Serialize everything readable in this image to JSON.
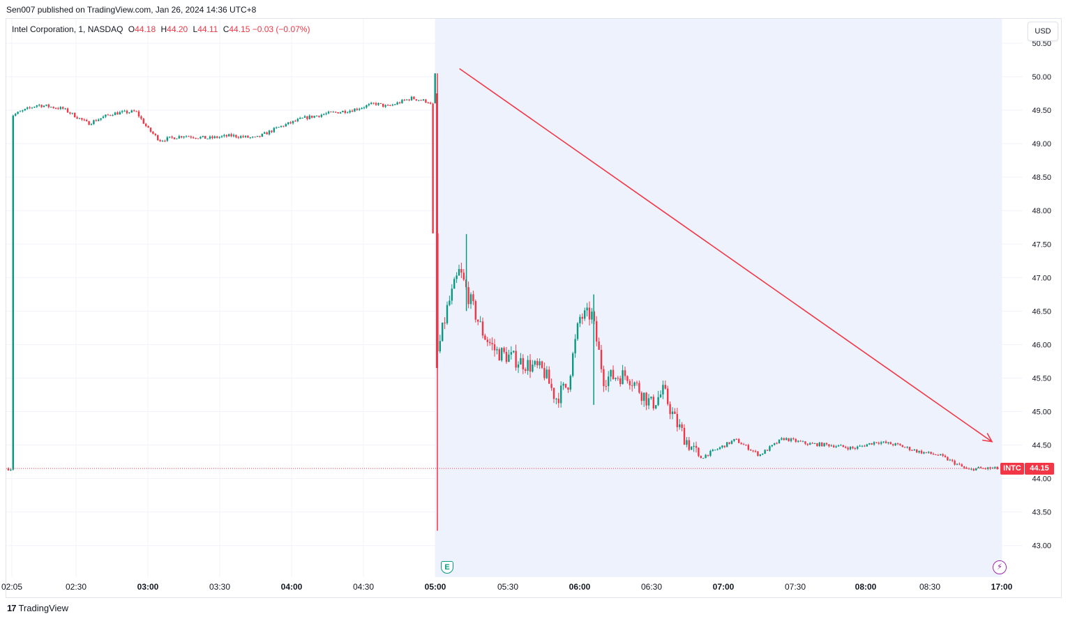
{
  "header": {
    "published": "Sen007 published on TradingView.com, Jan 26, 2024 14:36 UTC+8"
  },
  "legend": {
    "symbol": "Intel Corporation, 1, NASDAQ",
    "o_label": "O",
    "o_value": "44.18",
    "h_label": "H",
    "h_value": "44.20",
    "l_label": "L",
    "l_value": "44.11",
    "c_label": "C",
    "c_value": "44.15",
    "change": "−0.03 (−0.07%)"
  },
  "currency_button": "USD",
  "last_price": {
    "ticker": "INTC",
    "value": "44.15"
  },
  "badges": {
    "earnings": "E",
    "event": "⚡"
  },
  "footer": {
    "logo_text": "TradingView",
    "logo_mark": "17"
  },
  "colors": {
    "up": "#089981",
    "down": "#f23645",
    "session_shade": "#eef2fd",
    "grid": "#f0f3fa",
    "axis_text": "#131722",
    "arrow": "#f23645"
  },
  "chart_data": {
    "type": "candlestick",
    "symbol": "INTC",
    "interval": "1",
    "x_tick_labels": [
      "02:05",
      "02:30",
      "03:00",
      "03:30",
      "04:00",
      "04:30",
      "05:00",
      "05:30",
      "06:00",
      "06:30",
      "07:00",
      "07:30",
      "08:00",
      "08:30",
      "17:00"
    ],
    "y_tick_labels": [
      "50.50",
      "50.00",
      "49.50",
      "49.00",
      "48.50",
      "48.00",
      "47.50",
      "47.00",
      "46.50",
      "46.00",
      "45.50",
      "45.00",
      "44.50",
      "44.00",
      "43.50",
      "43.00"
    ],
    "ylim": [
      42.5,
      50.6
    ],
    "extended_session_start": "05:00",
    "grid": true,
    "last_close": 44.15,
    "trend_arrow": {
      "from": {
        "time": "05:10",
        "price": 50.12
      },
      "to": {
        "time": "09:10",
        "price": 44.55
      }
    },
    "price_path": [
      [
        "02:05",
        49.42
      ],
      [
        "02:15",
        49.58
      ],
      [
        "02:25",
        49.52
      ],
      [
        "02:35",
        49.3
      ],
      [
        "02:45",
        49.45
      ],
      [
        "02:55",
        49.48
      ],
      [
        "03:00",
        49.22
      ],
      [
        "03:05",
        49.05
      ],
      [
        "03:15",
        49.12
      ],
      [
        "03:25",
        49.08
      ],
      [
        "03:35",
        49.12
      ],
      [
        "03:45",
        49.08
      ],
      [
        "03:55",
        49.25
      ],
      [
        "04:05",
        49.38
      ],
      [
        "04:15",
        49.45
      ],
      [
        "04:25",
        49.5
      ],
      [
        "04:35",
        49.6
      ],
      [
        "04:40",
        49.55
      ],
      [
        "04:50",
        49.68
      ],
      [
        "04:58",
        49.62
      ],
      [
        "05:00",
        45.7
      ],
      [
        "05:05",
        46.55
      ],
      [
        "05:10",
        47.1
      ],
      [
        "05:15",
        46.6
      ],
      [
        "05:20",
        46.15
      ],
      [
        "05:25",
        45.9
      ],
      [
        "05:35",
        45.75
      ],
      [
        "05:45",
        45.6
      ],
      [
        "05:50",
        45.2
      ],
      [
        "05:55",
        45.4
      ],
      [
        "06:00",
        46.4
      ],
      [
        "06:05",
        46.45
      ],
      [
        "06:10",
        45.5
      ],
      [
        "06:20",
        45.55
      ],
      [
        "06:30",
        45.1
      ],
      [
        "06:35",
        45.3
      ],
      [
        "06:40",
        44.85
      ],
      [
        "06:45",
        44.55
      ],
      [
        "06:50",
        44.3
      ],
      [
        "06:58",
        44.45
      ],
      [
        "07:05",
        44.58
      ],
      [
        "07:15",
        44.35
      ],
      [
        "07:25",
        44.6
      ],
      [
        "07:35",
        44.52
      ],
      [
        "07:45",
        44.5
      ],
      [
        "07:55",
        44.45
      ],
      [
        "08:05",
        44.55
      ],
      [
        "08:15",
        44.5
      ],
      [
        "08:25",
        44.4
      ],
      [
        "08:35",
        44.35
      ],
      [
        "08:45",
        44.22
      ],
      [
        "08:52",
        44.12
      ],
      [
        "08:55",
        44.15
      ]
    ],
    "spike_wicks": [
      {
        "time": "05:00",
        "high": 50.05,
        "low": 43.22
      },
      {
        "time": "05:12",
        "high": 47.65,
        "low": 46.5
      },
      {
        "time": "06:05",
        "high": 46.75,
        "low": 45.1
      }
    ]
  }
}
